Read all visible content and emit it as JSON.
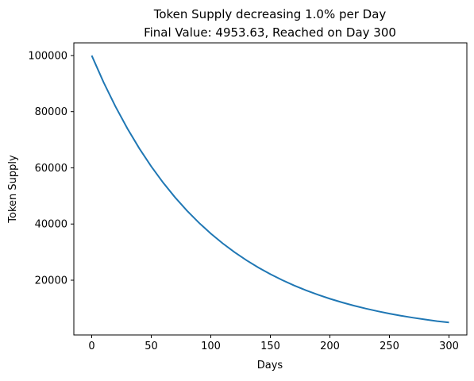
{
  "chart_data": {
    "type": "line",
    "title_line1": "Token Supply decreasing 1.0% per Day",
    "title_line2": "Final Value: 4953.63, Reached on Day 300",
    "xlabel": "Days",
    "ylabel": "Token Supply",
    "xlim": [
      -15,
      315
    ],
    "ylim": [
      500,
      104500
    ],
    "x_ticks": [
      0,
      50,
      100,
      150,
      200,
      250,
      300
    ],
    "y_ticks": [
      20000,
      40000,
      60000,
      80000,
      100000
    ],
    "grid": false,
    "line_color": "#1f77b4",
    "series": [
      {
        "x": [
          0,
          10,
          20,
          30,
          40,
          50,
          60,
          70,
          80,
          90,
          100,
          110,
          120,
          130,
          140,
          150,
          160,
          170,
          180,
          190,
          200,
          210,
          220,
          230,
          240,
          250,
          260,
          270,
          280,
          290,
          300
        ],
        "values": [
          100000,
          90438,
          81791,
          73970,
          66897,
          60501,
          54716,
          49484,
          44752,
          40473,
          36603,
          33103,
          29938,
          27075,
          24487,
          22145,
          20028,
          18113,
          16381,
          14815,
          13398,
          12117,
          10959,
          9911,
          8963,
          8106,
          7331,
          6630,
          5996,
          5423,
          4954
        ]
      }
    ]
  }
}
